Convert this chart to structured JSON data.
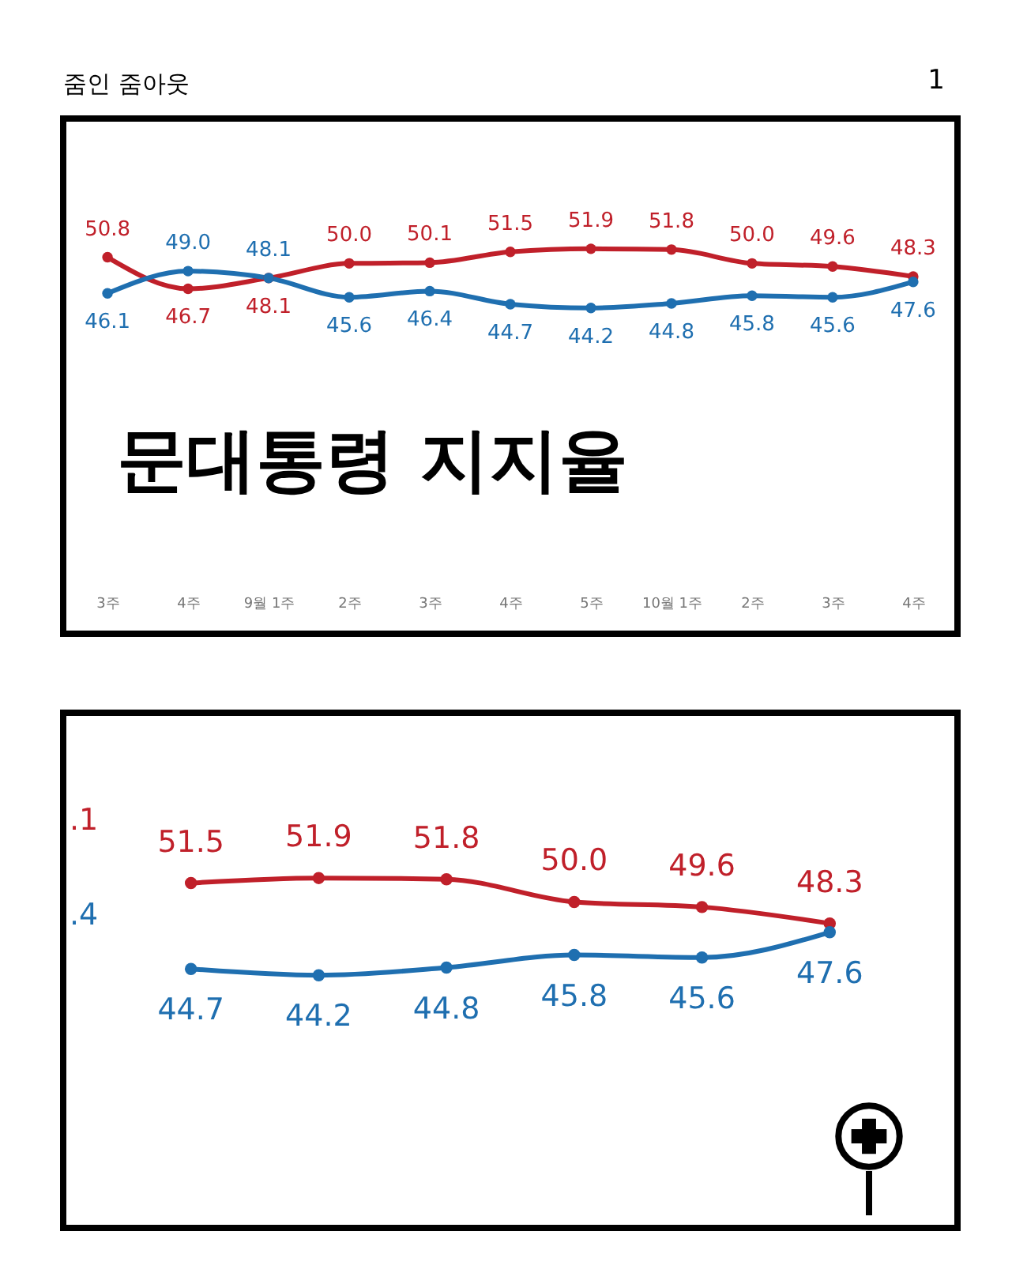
{
  "chart_data": [
    {
      "type": "line",
      "title": "문대통령 지지율",
      "annotations": [
        "줌인 줌아웃",
        "1"
      ],
      "categories": [
        "3주",
        "4주",
        "9월 1주",
        "2주",
        "3주",
        "4주",
        "5주",
        "10월 1주",
        "2주",
        "3주",
        "4주"
      ],
      "series": [
        {
          "color": "#c0202a",
          "values": [
            50.8,
            46.7,
            48.1,
            50.0,
            50.1,
            51.5,
            51.9,
            51.8,
            50.0,
            49.6,
            48.3
          ],
          "value_labels": [
            "50.8",
            "46.7",
            "48.1",
            "50.0",
            "50.1",
            "51.5",
            "51.9",
            "51.8",
            "50.0",
            "49.6",
            "48.3"
          ]
        },
        {
          "color": "#1f6fb0",
          "values": [
            46.1,
            49.0,
            48.1,
            45.6,
            46.4,
            44.7,
            44.2,
            44.8,
            45.8,
            45.6,
            47.6
          ],
          "value_labels": [
            "46.1",
            "49.0",
            "48.1",
            "45.6",
            "46.4",
            "44.7",
            "44.2",
            "44.8",
            "45.8",
            "45.6",
            "47.6"
          ]
        }
      ],
      "marker": "circle",
      "grid": false,
      "legend": false,
      "tick_labels": "x"
    },
    {
      "type": "line",
      "annotations": [
        ".1",
        ".4"
      ],
      "categories": [
        null,
        null,
        null,
        null,
        null,
        null
      ],
      "series": [
        {
          "color": "#c0202a",
          "values": [
            51.5,
            51.9,
            51.8,
            50.0,
            49.6,
            48.3
          ],
          "value_labels": [
            "51.5",
            "51.9",
            "51.8",
            "50.0",
            "49.6",
            "48.3"
          ]
        },
        {
          "color": "#1f6fb0",
          "values": [
            44.7,
            44.2,
            44.8,
            45.8,
            45.6,
            47.6
          ],
          "value_labels": [
            "44.7",
            "44.2",
            "44.8",
            "45.8",
            "45.6",
            "47.6"
          ]
        }
      ],
      "marker": "circle",
      "grid": false,
      "legend": false,
      "tick_labels": false
    }
  ]
}
